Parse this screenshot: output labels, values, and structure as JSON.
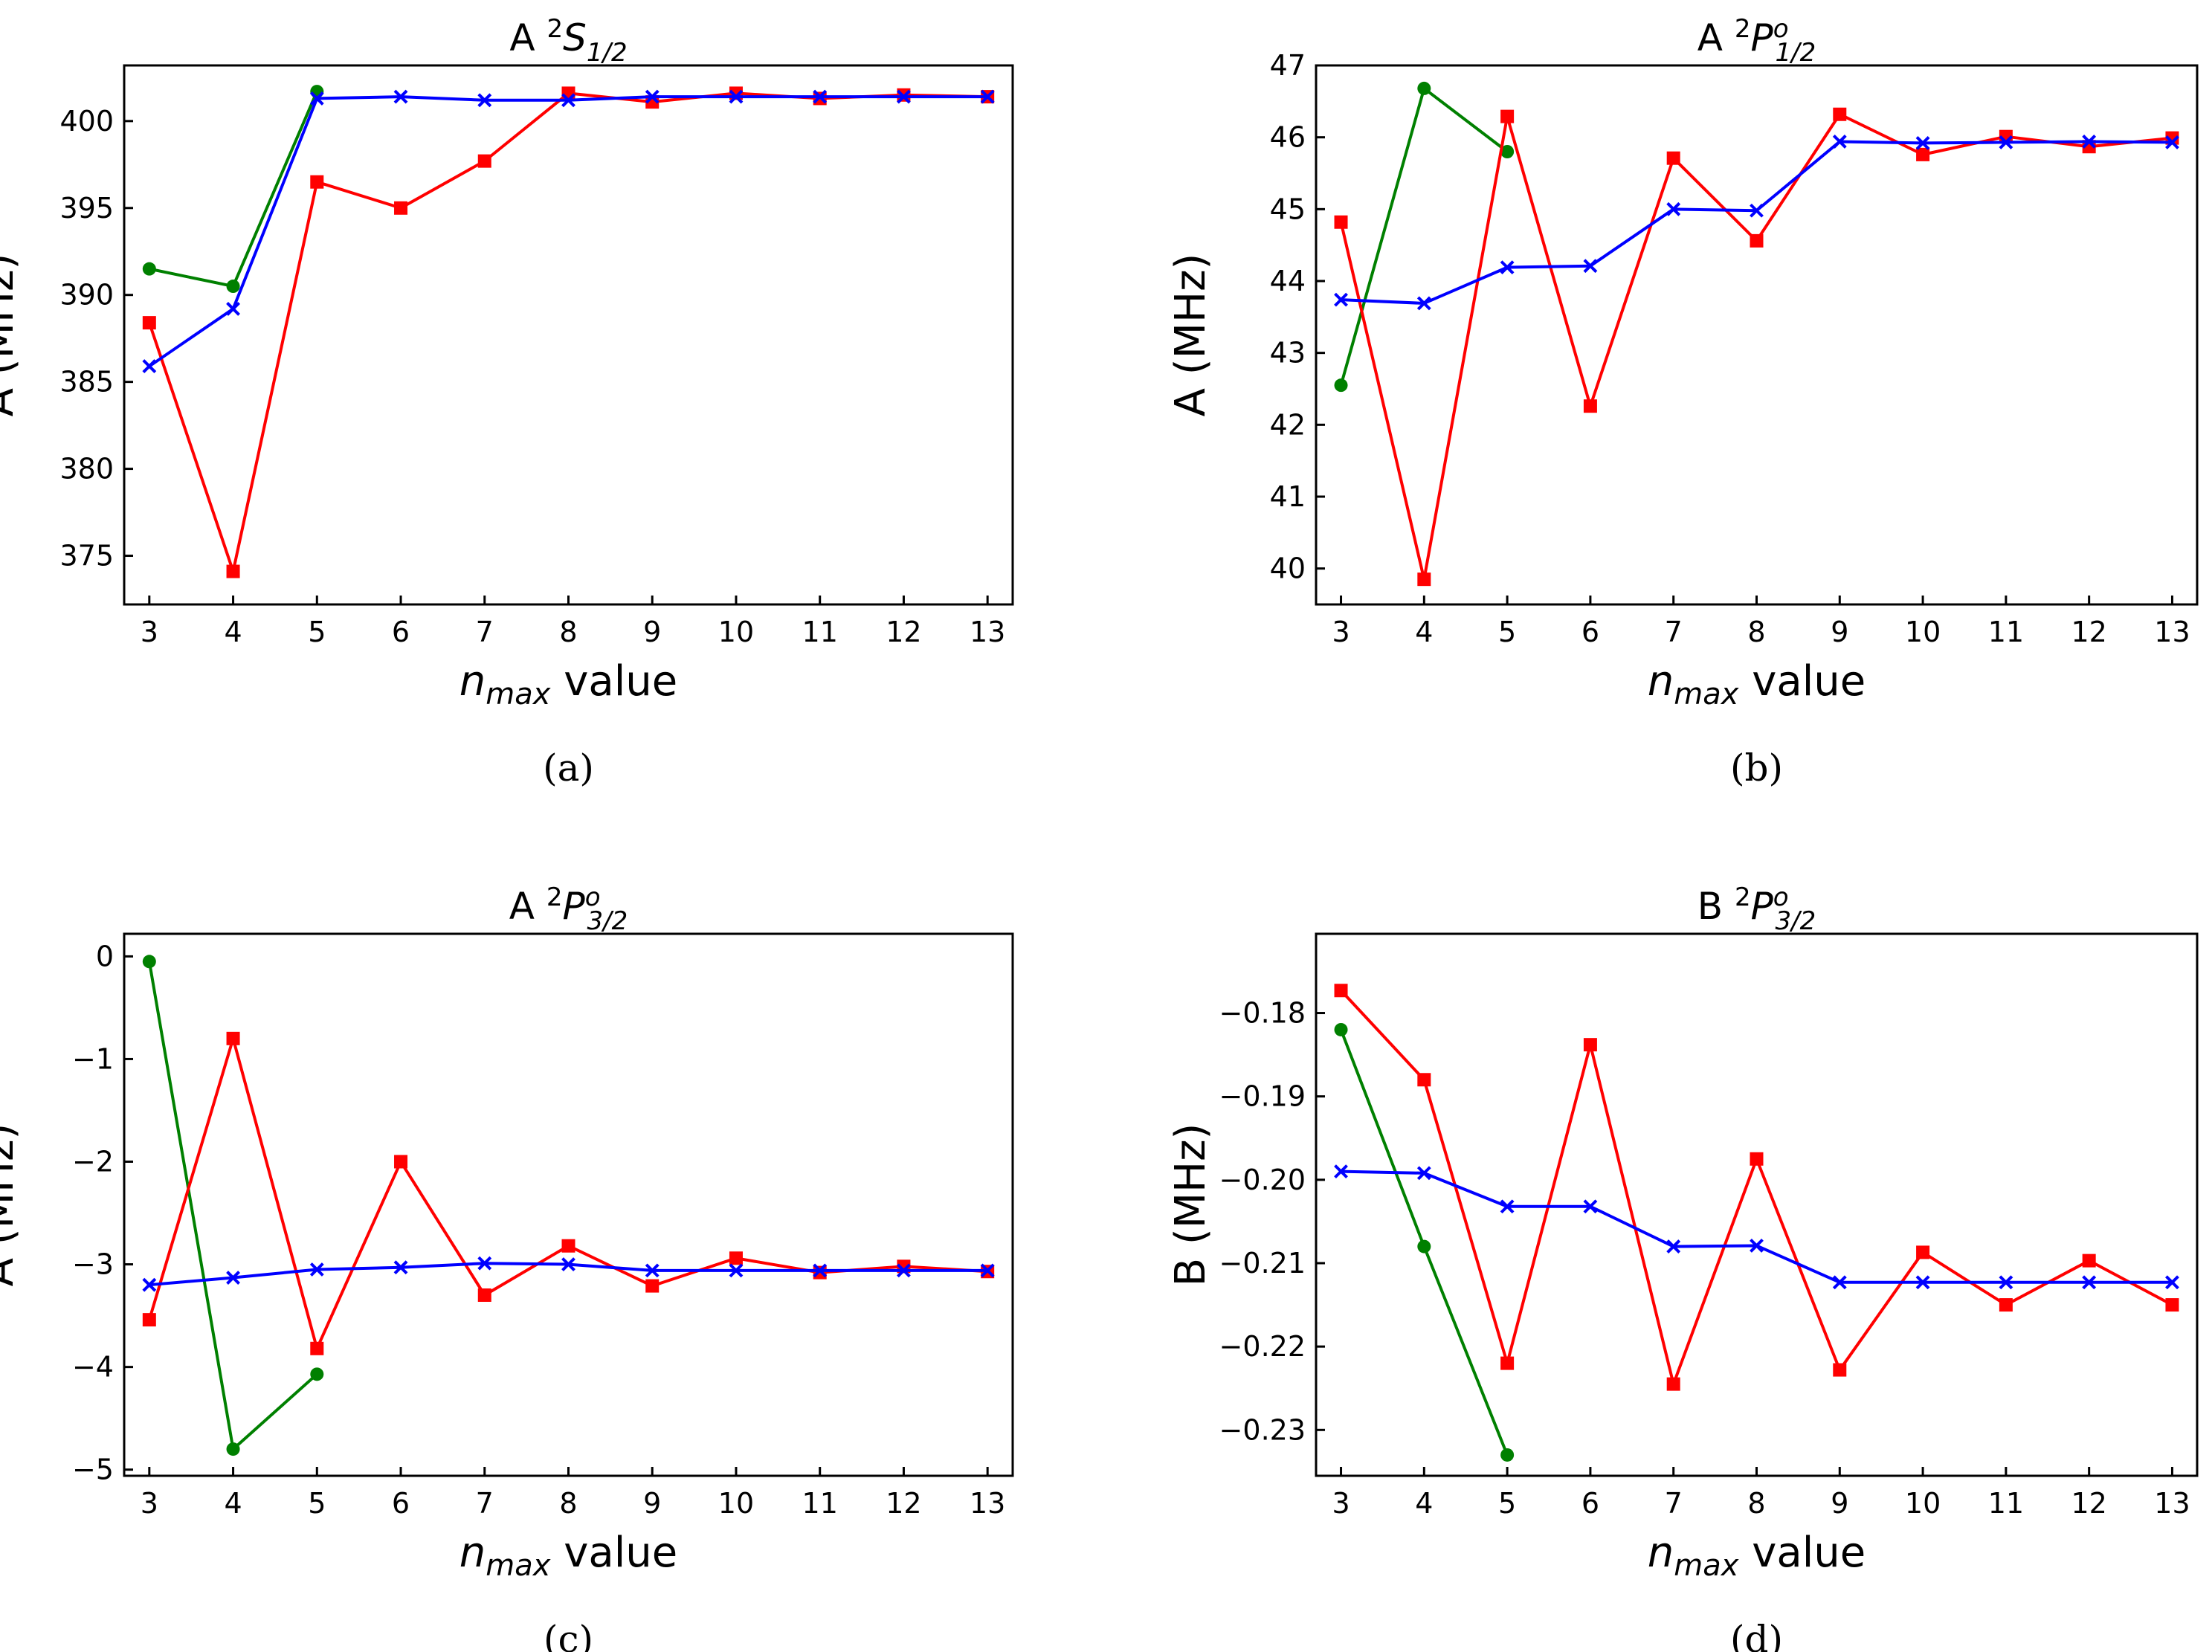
{
  "figure": {
    "colors": {
      "red": "#ff0000",
      "blue": "#0000ff",
      "green": "#008000"
    }
  },
  "chart_data": [
    {
      "type": "line",
      "panel": "a",
      "caption": "(a)",
      "title_main": "A ",
      "title_sup": "2",
      "title_base": "S",
      "title_sup2": "",
      "title_sub": "1/2",
      "xlabel_main": "n",
      "xlabel_sub": "max",
      "xlabel_rest": " value",
      "ylabel": "A (MHz)",
      "xlim": [
        2.7,
        13.3
      ],
      "ylim": [
        372.2,
        403.2
      ],
      "xticks": [
        3,
        4,
        5,
        6,
        7,
        8,
        9,
        10,
        11,
        12,
        13
      ],
      "yticks": [
        375,
        380,
        385,
        390,
        395,
        400
      ],
      "series": [
        {
          "name": "green",
          "color": "#008000",
          "marker": "circle",
          "x": [
            3,
            4,
            5
          ],
          "values": [
            391.5,
            390.5,
            401.7
          ]
        },
        {
          "name": "red",
          "color": "#ff0000",
          "marker": "square",
          "x": [
            3,
            4,
            5,
            6,
            7,
            8,
            9,
            10,
            11,
            12,
            13
          ],
          "values": [
            388.4,
            374.1,
            396.5,
            395.0,
            397.7,
            401.6,
            401.1,
            401.6,
            401.3,
            401.5,
            401.4
          ]
        },
        {
          "name": "blue",
          "color": "#0000ff",
          "marker": "x",
          "x": [
            3,
            4,
            5,
            6,
            7,
            8,
            9,
            10,
            11,
            12,
            13
          ],
          "values": [
            385.9,
            389.2,
            401.3,
            401.4,
            401.2,
            401.2,
            401.4,
            401.4,
            401.4,
            401.4,
            401.4
          ]
        }
      ]
    },
    {
      "type": "line",
      "panel": "b",
      "caption": "(b)",
      "title_main": "A ",
      "title_sup": "2",
      "title_base": "P",
      "title_sup2": "o",
      "title_sub": "1/2",
      "xlabel_main": "n",
      "xlabel_sub": "max",
      "xlabel_rest": " value",
      "ylabel": "A (MHz)",
      "xlim": [
        2.7,
        13.3
      ],
      "ylim": [
        39.5,
        47.0
      ],
      "xticks": [
        3,
        4,
        5,
        6,
        7,
        8,
        9,
        10,
        11,
        12,
        13
      ],
      "yticks": [
        40,
        41,
        42,
        43,
        44,
        45,
        46,
        47
      ],
      "series": [
        {
          "name": "green",
          "color": "#008000",
          "marker": "circle",
          "x": [
            3,
            4,
            5
          ],
          "values": [
            42.55,
            46.68,
            45.8
          ]
        },
        {
          "name": "red",
          "color": "#ff0000",
          "marker": "square",
          "x": [
            3,
            4,
            5,
            6,
            7,
            8,
            9,
            10,
            11,
            12,
            13
          ],
          "values": [
            44.82,
            39.85,
            46.29,
            42.26,
            45.71,
            44.56,
            46.32,
            45.76,
            46.01,
            45.87,
            45.99
          ]
        },
        {
          "name": "blue",
          "color": "#0000ff",
          "marker": "x",
          "x": [
            3,
            4,
            5,
            6,
            7,
            8,
            9,
            10,
            11,
            12,
            13
          ],
          "values": [
            43.74,
            43.69,
            44.19,
            44.21,
            45.0,
            44.98,
            45.94,
            45.92,
            45.93,
            45.94,
            45.93
          ]
        }
      ]
    },
    {
      "type": "line",
      "panel": "c",
      "caption": "(c)",
      "title_main": "A ",
      "title_sup": "2",
      "title_base": "P",
      "title_sup2": "o",
      "title_sub": "3/2",
      "xlabel_main": "n",
      "xlabel_sub": "max",
      "xlabel_rest": " value",
      "ylabel": "A (MHz)",
      "xlim": [
        2.7,
        13.3
      ],
      "ylim": [
        -5.06,
        0.22
      ],
      "xticks": [
        3,
        4,
        5,
        6,
        7,
        8,
        9,
        10,
        11,
        12,
        13
      ],
      "yticks": [
        -5,
        -4,
        -3,
        -2,
        -1,
        0
      ],
      "ytick_labels": [
        "−5",
        "−4",
        "−3",
        "−2",
        "−1",
        "0"
      ],
      "series": [
        {
          "name": "green",
          "color": "#008000",
          "marker": "circle",
          "x": [
            3,
            4,
            5
          ],
          "values": [
            -0.05,
            -4.8,
            -4.07
          ]
        },
        {
          "name": "red",
          "color": "#ff0000",
          "marker": "square",
          "x": [
            3,
            4,
            5,
            6,
            7,
            8,
            9,
            10,
            11,
            12,
            13
          ],
          "values": [
            -3.54,
            -0.8,
            -3.82,
            -2.0,
            -3.3,
            -2.82,
            -3.21,
            -2.94,
            -3.08,
            -3.02,
            -3.07
          ]
        },
        {
          "name": "blue",
          "color": "#0000ff",
          "marker": "x",
          "x": [
            3,
            4,
            5,
            6,
            7,
            8,
            9,
            10,
            11,
            12,
            13
          ],
          "values": [
            -3.2,
            -3.13,
            -3.05,
            -3.03,
            -2.99,
            -3.0,
            -3.06,
            -3.06,
            -3.06,
            -3.06,
            -3.06
          ]
        }
      ]
    },
    {
      "type": "line",
      "panel": "d",
      "caption": "(d)",
      "title_main": "B ",
      "title_sup": "2",
      "title_base": "P",
      "title_sup2": "o",
      "title_sub": "3/2",
      "xlabel_main": "n",
      "xlabel_sub": "max",
      "xlabel_rest": " value",
      "ylabel": "B (MHz)",
      "xlim": [
        2.7,
        13.3
      ],
      "ylim": [
        -0.2355,
        -0.1705
      ],
      "xticks": [
        3,
        4,
        5,
        6,
        7,
        8,
        9,
        10,
        11,
        12,
        13
      ],
      "yticks": [
        -0.23,
        -0.22,
        -0.21,
        -0.2,
        -0.19,
        -0.18
      ],
      "ytick_labels": [
        "−0.23",
        "−0.22",
        "−0.21",
        "−0.20",
        "−0.19",
        "−0.18"
      ],
      "series": [
        {
          "name": "green",
          "color": "#008000",
          "marker": "circle",
          "x": [
            3,
            4,
            5
          ],
          "values": [
            -0.182,
            -0.208,
            -0.233
          ]
        },
        {
          "name": "red",
          "color": "#ff0000",
          "marker": "square",
          "x": [
            3,
            4,
            5,
            6,
            7,
            8,
            9,
            10,
            11,
            12,
            13
          ],
          "values": [
            -0.1773,
            -0.188,
            -0.222,
            -0.1838,
            -0.2245,
            -0.1975,
            -0.2228,
            -0.2087,
            -0.215,
            -0.2097,
            -0.215
          ]
        },
        {
          "name": "blue",
          "color": "#0000ff",
          "marker": "x",
          "x": [
            3,
            4,
            5,
            6,
            7,
            8,
            9,
            10,
            11,
            12,
            13
          ],
          "values": [
            -0.199,
            -0.1992,
            -0.2032,
            -0.2032,
            -0.208,
            -0.2079,
            -0.2123,
            -0.2123,
            -0.2123,
            -0.2123,
            -0.2123
          ]
        }
      ]
    }
  ]
}
